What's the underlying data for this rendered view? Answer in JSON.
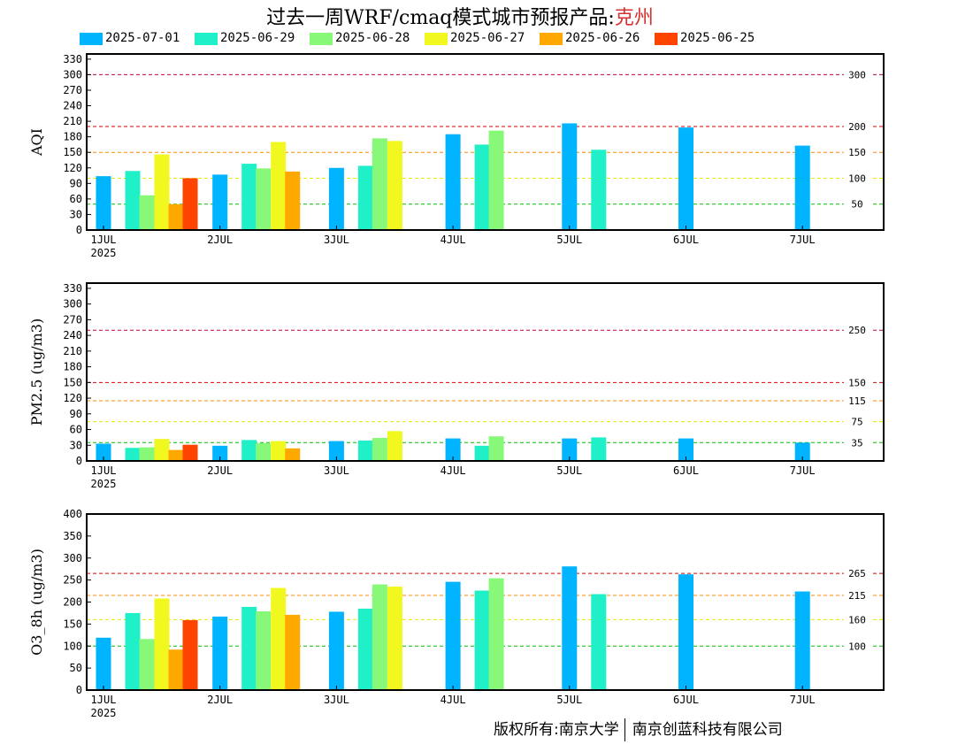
{
  "title": {
    "prefix": "过去一周WRF/cmaq模式城市预报产品:",
    "city": "克州"
  },
  "footer": {
    "left": "版权所有:南京大学",
    "right": "南京创蓝科技有限公司"
  },
  "colors": {
    "2025-07-01": "#00b4ff",
    "2025-06-29": "#20f0c8",
    "2025-06-28": "#88f878",
    "2025-06-27": "#f0f820",
    "2025-06-26": "#ffa800",
    "2025-06-25": "#ff4400"
  },
  "chart_data": [
    {
      "type": "bar",
      "ylabel": "AQI",
      "ylim": [
        0,
        340
      ],
      "yticks": [
        0,
        30,
        60,
        90,
        120,
        150,
        180,
        210,
        240,
        270,
        300,
        330
      ],
      "x_tick_labels": [
        "1JUL",
        "2JUL",
        "3JUL",
        "4JUL",
        "5JUL",
        "6JUL",
        "7JUL"
      ],
      "x_year_label": "2025",
      "thresholds": [
        {
          "value": 300,
          "label": "300",
          "color": "#c00040"
        },
        {
          "value": 200,
          "label": "200",
          "color": "#e00000"
        },
        {
          "value": 150,
          "label": "150",
          "color": "#ff8800"
        },
        {
          "value": 100,
          "label": "100",
          "color": "#e8e800"
        },
        {
          "value": 50,
          "label": "50",
          "color": "#00c000"
        }
      ],
      "series": [
        {
          "name": "2025-07-01",
          "values": [
            104,
            107,
            120,
            185,
            206,
            198,
            163
          ]
        },
        {
          "name": "2025-06-29",
          "values": [
            114,
            128,
            124,
            165,
            155,
            null,
            null
          ]
        },
        {
          "name": "2025-06-28",
          "values": [
            67,
            119,
            177,
            192,
            null,
            null,
            null
          ]
        },
        {
          "name": "2025-06-27",
          "values": [
            146,
            170,
            172,
            null,
            null,
            null,
            null
          ]
        },
        {
          "name": "2025-06-26",
          "values": [
            50,
            113,
            null,
            null,
            null,
            null,
            null
          ]
        },
        {
          "name": "2025-06-25",
          "values": [
            100,
            null,
            null,
            null,
            null,
            null,
            null
          ]
        }
      ]
    },
    {
      "type": "bar",
      "ylabel": "PM2.5 (ug/m3)",
      "ylim": [
        0,
        340
      ],
      "yticks": [
        0,
        30,
        60,
        90,
        120,
        150,
        180,
        210,
        240,
        270,
        300,
        330
      ],
      "x_tick_labels": [
        "1JUL",
        "2JUL",
        "3JUL",
        "4JUL",
        "5JUL",
        "6JUL",
        "7JUL"
      ],
      "x_year_label": "2025",
      "thresholds": [
        {
          "value": 250,
          "label": "250",
          "color": "#c00040"
        },
        {
          "value": 150,
          "label": "150",
          "color": "#e00000"
        },
        {
          "value": 115,
          "label": "115",
          "color": "#ff8800"
        },
        {
          "value": 75,
          "label": "75",
          "color": "#e8e800"
        },
        {
          "value": 35,
          "label": "35",
          "color": "#00c000"
        }
      ],
      "series": [
        {
          "name": "2025-07-01",
          "values": [
            33,
            29,
            38,
            43,
            43,
            43,
            35
          ]
        },
        {
          "name": "2025-06-29",
          "values": [
            25,
            40,
            39,
            29,
            45,
            null,
            null
          ]
        },
        {
          "name": "2025-06-28",
          "values": [
            26,
            34,
            44,
            47,
            null,
            null,
            null
          ]
        },
        {
          "name": "2025-06-27",
          "values": [
            42,
            38,
            57,
            null,
            null,
            null,
            null
          ]
        },
        {
          "name": "2025-06-26",
          "values": [
            21,
            24,
            null,
            null,
            null,
            null,
            null
          ]
        },
        {
          "name": "2025-06-25",
          "values": [
            31,
            null,
            null,
            null,
            null,
            null,
            null
          ]
        }
      ]
    },
    {
      "type": "bar",
      "ylabel": "O3_8h (ug/m3)",
      "ylim": [
        0,
        400
      ],
      "yticks": [
        0,
        50,
        100,
        150,
        200,
        250,
        300,
        350,
        400
      ],
      "x_tick_labels": [
        "1JUL",
        "2JUL",
        "3JUL",
        "4JUL",
        "5JUL",
        "6JUL",
        "7JUL"
      ],
      "x_year_label": "2025",
      "thresholds": [
        {
          "value": 265,
          "label": "265",
          "color": "#e00000"
        },
        {
          "value": 215,
          "label": "215",
          "color": "#ff8800"
        },
        {
          "value": 160,
          "label": "160",
          "color": "#e8e800"
        },
        {
          "value": 100,
          "label": "100",
          "color": "#00c000"
        }
      ],
      "series": [
        {
          "name": "2025-07-01",
          "values": [
            119,
            167,
            178,
            246,
            281,
            263,
            224
          ]
        },
        {
          "name": "2025-06-29",
          "values": [
            175,
            189,
            185,
            226,
            218,
            null,
            null
          ]
        },
        {
          "name": "2025-06-28",
          "values": [
            116,
            179,
            240,
            254,
            null,
            null,
            null
          ]
        },
        {
          "name": "2025-06-27",
          "values": [
            208,
            232,
            235,
            null,
            null,
            null,
            null
          ]
        },
        {
          "name": "2025-06-26",
          "values": [
            92,
            171,
            null,
            null,
            null,
            null,
            null
          ]
        },
        {
          "name": "2025-06-25",
          "values": [
            159,
            null,
            null,
            null,
            null,
            null,
            null
          ]
        }
      ]
    }
  ]
}
